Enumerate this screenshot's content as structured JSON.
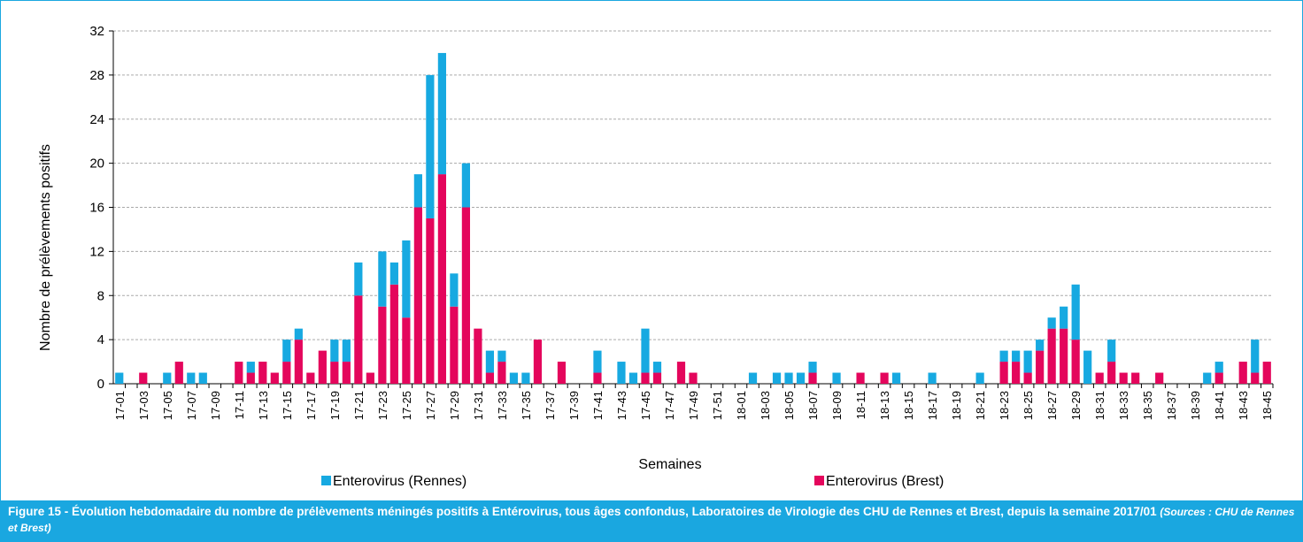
{
  "chart_data": {
    "type": "stacked_bar",
    "ylabel": "Nombre de prélèvements positifs",
    "xlabel": "Semaines",
    "categories": [
      "17-01",
      null,
      "17-03",
      null,
      "17-05",
      null,
      "17-07",
      null,
      "17-09",
      null,
      "17-11",
      null,
      "17-13",
      null,
      "17-15",
      null,
      "17-17",
      null,
      "17-19",
      null,
      "17-21",
      null,
      "17-23",
      null,
      "17-25",
      null,
      "17-27",
      null,
      "17-29",
      null,
      "17-31",
      null,
      "17-33",
      null,
      "17-35",
      null,
      "17-37",
      null,
      "17-39",
      null,
      "17-41",
      null,
      "17-43",
      null,
      "17-45",
      null,
      "17-47",
      null,
      "17-49",
      null,
      "17-51",
      null,
      "18-01",
      null,
      "18-03",
      null,
      "18-05",
      null,
      "18-07",
      null,
      "18-09",
      null,
      "18-11",
      null,
      "18-13",
      null,
      "18-15",
      null,
      "18-17",
      null,
      "18-19",
      null,
      "18-21",
      null,
      "18-23",
      null,
      "18-25",
      null,
      "18-27",
      null,
      "18-29",
      null,
      "18-31",
      null,
      "18-33",
      null,
      "18-35",
      null,
      "18-37",
      null,
      "18-39",
      null,
      "18-41",
      null,
      "18-43",
      null,
      "18-45"
    ],
    "series": [
      {
        "name": "Enterovirus (Brest)",
        "color": "#e4065c",
        "values": [
          0,
          0,
          1,
          0,
          0,
          2,
          0,
          0,
          0,
          0,
          2,
          1,
          2,
          1,
          2,
          4,
          1,
          3,
          2,
          2,
          8,
          1,
          7,
          9,
          6,
          16,
          15,
          19,
          7,
          16,
          5,
          1,
          2,
          0,
          0,
          4,
          0,
          2,
          0,
          0,
          1,
          0,
          0,
          0,
          1,
          1,
          0,
          2,
          1,
          0,
          0,
          0,
          0,
          0,
          0,
          0,
          0,
          0,
          1,
          0,
          0,
          0,
          1,
          0,
          1,
          0,
          0,
          0,
          0,
          0,
          0,
          0,
          0,
          0,
          2,
          2,
          1,
          3,
          5,
          5,
          4,
          0,
          1,
          2,
          1,
          1,
          0,
          1,
          0,
          0,
          0,
          0,
          1,
          0,
          2,
          1,
          2
        ]
      },
      {
        "name": "Enterovirus (Rennes)",
        "color": "#17a9e1",
        "values": [
          1,
          0,
          0,
          0,
          1,
          0,
          1,
          1,
          0,
          0,
          0,
          1,
          0,
          0,
          2,
          1,
          0,
          0,
          2,
          2,
          3,
          0,
          5,
          2,
          7,
          3,
          13,
          11,
          3,
          4,
          0,
          2,
          1,
          1,
          1,
          0,
          0,
          0,
          0,
          0,
          2,
          0,
          2,
          1,
          4,
          1,
          0,
          0,
          0,
          0,
          0,
          0,
          0,
          1,
          0,
          1,
          1,
          1,
          1,
          0,
          1,
          0,
          0,
          0,
          0,
          1,
          0,
          0,
          1,
          0,
          0,
          0,
          1,
          0,
          1,
          1,
          2,
          1,
          1,
          2,
          5,
          3,
          0,
          2,
          0,
          0,
          0,
          0,
          0,
          0,
          0,
          1,
          1,
          0,
          0,
          3,
          0
        ]
      }
    ],
    "ylim": [
      0,
      32
    ],
    "yticks": [
      0,
      4,
      8,
      12,
      16,
      20,
      24,
      28,
      32
    ],
    "grid": true,
    "caption": {
      "text": "Figure 15 - Évolution hebdomadaire du nombre de prélèvements méningés positifs à Entérovirus, tous âges confondus, Laboratoires de Virologie des CHU de Rennes et Brest, depuis la semaine 2017/01",
      "source": "(Sources : CHU de Rennes et Brest)"
    }
  }
}
